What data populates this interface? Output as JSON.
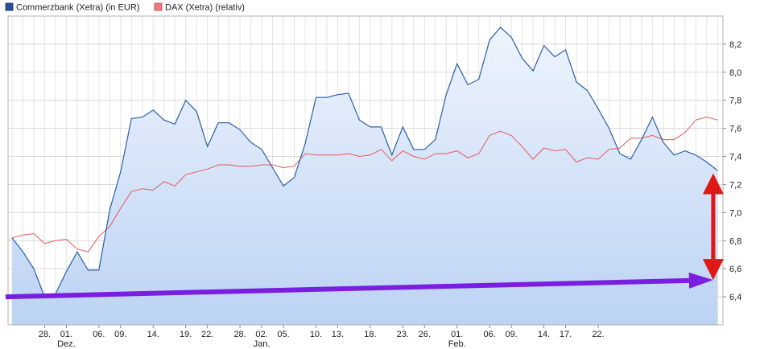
{
  "chart_data": {
    "type": "line",
    "legend_position": "top-left",
    "grid": true,
    "y_axis_side": "right",
    "ylim": [
      6.2,
      8.4
    ],
    "yticks": [
      "6,4",
      "6,6",
      "6,8",
      "7,0",
      "7,2",
      "7,4",
      "7,6",
      "7,8",
      "8,0",
      "8,2"
    ],
    "x_day_ticks": [
      "28.",
      "01.",
      "06.",
      "09.",
      "14.",
      "19.",
      "22.",
      "28.",
      "02.",
      "05.",
      "10.",
      "13.",
      "18.",
      "23.",
      "26.",
      "01.",
      "06.",
      "09.",
      "14.",
      "17.",
      "22."
    ],
    "x_day_tick_index": [
      3,
      5,
      8,
      10,
      13,
      16,
      18,
      21,
      23,
      25,
      28,
      30,
      33,
      36,
      38,
      41,
      44,
      46,
      49,
      51,
      54
    ],
    "x_month_ticks": [
      {
        "label": "Dez.",
        "index": 5
      },
      {
        "label": "Jan.",
        "index": 23
      },
      {
        "label": "Feb.",
        "index": 41
      }
    ],
    "series": [
      {
        "name": "Commerzbank (Xetra) (in EUR)",
        "color": "#2a5fa8",
        "fill": true,
        "values": [
          6.82,
          6.72,
          6.6,
          6.4,
          6.42,
          6.58,
          6.72,
          6.59,
          6.59,
          7.02,
          7.29,
          7.67,
          7.68,
          7.73,
          7.66,
          7.63,
          7.8,
          7.72,
          7.47,
          7.64,
          7.64,
          7.59,
          7.5,
          7.45,
          7.32,
          7.19,
          7.25,
          7.49,
          7.82,
          7.82,
          7.84,
          7.85,
          7.66,
          7.61,
          7.61,
          7.41,
          7.61,
          7.45,
          7.45,
          7.52,
          7.84,
          8.06,
          7.91,
          7.95,
          8.23,
          8.32,
          8.25,
          8.1,
          8.01,
          8.19,
          8.11,
          8.16,
          7.93,
          7.87,
          7.74,
          7.6,
          7.42,
          7.38,
          7.52,
          7.68,
          7.5,
          7.41,
          7.44,
          7.41,
          7.36,
          7.3
        ]
      },
      {
        "name": "DAX (Xetra) (relativ)",
        "color": "#e8585a",
        "fill": false,
        "values": [
          6.82,
          6.84,
          6.85,
          6.78,
          6.8,
          6.81,
          6.74,
          6.72,
          6.83,
          6.9,
          7.03,
          7.15,
          7.17,
          7.16,
          7.22,
          7.19,
          7.27,
          7.29,
          7.31,
          7.34,
          7.34,
          7.33,
          7.33,
          7.34,
          7.34,
          7.32,
          7.33,
          7.42,
          7.41,
          7.41,
          7.41,
          7.42,
          7.4,
          7.41,
          7.45,
          7.37,
          7.44,
          7.4,
          7.38,
          7.42,
          7.42,
          7.44,
          7.39,
          7.42,
          7.55,
          7.58,
          7.55,
          7.47,
          7.38,
          7.46,
          7.44,
          7.45,
          7.36,
          7.39,
          7.38,
          7.45,
          7.46,
          7.53,
          7.53,
          7.55,
          7.52,
          7.52,
          7.57,
          7.66,
          7.68,
          7.66
        ]
      }
    ],
    "annotations": [
      {
        "type": "trend-arrow",
        "color": "#7a1ee0",
        "from_index": -0.6,
        "from_value": 6.4,
        "to_index": 64.6,
        "to_value": 6.52
      },
      {
        "type": "double-arrow",
        "color": "#e01818",
        "at_index": 64.6,
        "from_value": 6.52,
        "to_value": 7.28
      }
    ]
  }
}
